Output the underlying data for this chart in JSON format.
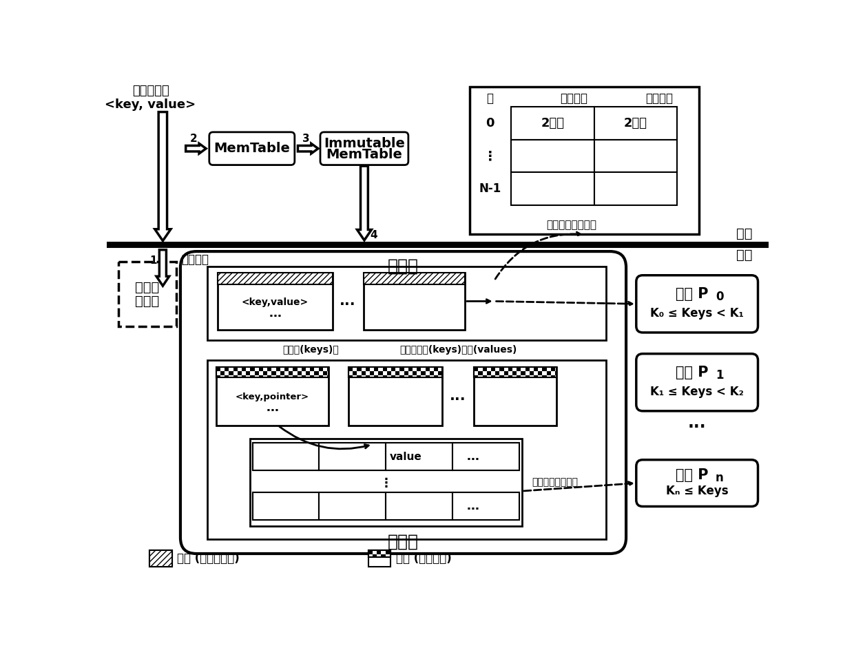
{
  "bg_color": "#ffffff",
  "disk_label": "磁盘",
  "memory_label": "内存",
  "input_label_line1": "键値数据对",
  "input_label_line2": "<key, value>",
  "memtable_label": "MemTable",
  "immutable_label_line1": "Immutable",
  "immutable_label_line2": "MemTable",
  "log_label_line1": "磁盘上",
  "log_label_line2": "的日志",
  "xie_ri_zhi": "先写日志",
  "wu_xu_label": "无序层",
  "you_xu_label": "有序层",
  "hebing_label": "合并键(keys)，",
  "fenli_label": "分离存储键(keys)和値(values)",
  "hash_index_label": "无序层的哈希索引",
  "hash_table_header_tong": "桶",
  "hash_table_header_tag": "键値标签",
  "hash_table_header_fileno": "文件编号",
  "hash_table_row0_label": "0",
  "hash_table_row0_col1": "2字节",
  "hash_table_row0_col2": "2字节",
  "hash_table_dots": "⋮",
  "hash_table_rowN_label": "N-1",
  "key_value_file_label_line1": "<key,value>",
  "key_value_file_label_line2": "…",
  "key_pointer_file_label_line1": "<key,pointer>",
  "key_pointer_file_label_line2": "…",
  "value_label": "value",
  "dots3": "…",
  "cun_chu_label": "存储値的日志文件",
  "legend_label1": "文件 (键値数据对)",
  "legend_label2": "文件 (键和指针)",
  "arrow1_label": "1",
  "arrow2_label": "2",
  "arrow3_label": "3",
  "arrow4_label": "4",
  "part0_line1": "分区 P",
  "part0_sub": "0",
  "part0_formula": "K₀ ≤ Keys < K₁",
  "part1_line1": "分区 P",
  "part1_sub": "1",
  "part1_formula": "K₁ ≤ Keys < K₂",
  "partn_line1": "分区 P",
  "partn_sub": "n",
  "partn_formula": "Kₙ ≤ Keys"
}
